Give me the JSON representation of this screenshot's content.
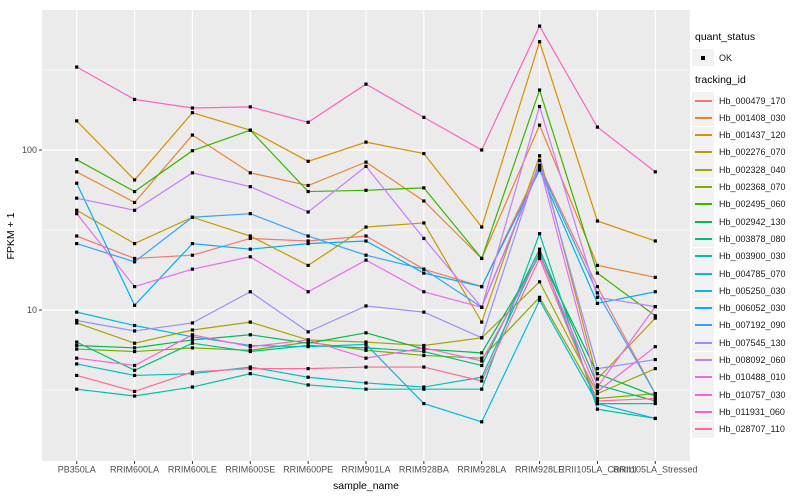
{
  "chart_data": {
    "type": "line",
    "title": "",
    "xlabel": "sample_name",
    "ylabel": "FPKM + 1",
    "y_scale": "log10",
    "ylim": [
      1.1,
      750
    ],
    "grid": true,
    "legend_position": "right",
    "panel_bg": "#EBEBEB",
    "grid_color": "#FFFFFF",
    "point_color": "#000000",
    "axis_text_color": "#4D4D4D",
    "y_ticks": [
      {
        "value": 100,
        "label": "100"
      },
      {
        "value": 10,
        "label": "10"
      }
    ],
    "y_minor_ticks": [
      3.162,
      31.62,
      316.2
    ],
    "categories": [
      "PB350LA",
      "RRIM600LA",
      "RRIM600LE",
      "RRIM600SE",
      "RRIM600PE",
      "RRIM901LA",
      "RRIM928BA",
      "RRIM928LA",
      "RRIM928LE",
      "RRII105LA_Control",
      "RRII105LA_Stressed"
    ],
    "legend": {
      "quant_status": {
        "title": "quant_status",
        "items": [
          "OK"
        ]
      },
      "tracking_id": {
        "title": "tracking_id"
      }
    },
    "series": [
      {
        "name": "Hb_000479_170",
        "color": "#F8766D",
        "values": [
          29,
          21,
          22,
          28,
          27,
          29,
          18,
          14,
          80,
          14,
          3.0
        ]
      },
      {
        "name": "Hb_001408_030",
        "color": "#EA8331",
        "values": [
          73,
          47,
          124,
          72,
          60,
          84,
          48,
          21,
          143,
          19,
          16
        ]
      },
      {
        "name": "Hb_001437_120",
        "color": "#D89000",
        "values": [
          152,
          65,
          171,
          133,
          85,
          112,
          95,
          33,
          475,
          36,
          27
        ]
      },
      {
        "name": "Hb_002276_070",
        "color": "#C09B00",
        "values": [
          42,
          26,
          38,
          29,
          19,
          33,
          35,
          8.4,
          92,
          3.7,
          8.9
        ]
      },
      {
        "name": "Hb_002328_040",
        "color": "#A3A500",
        "values": [
          8.3,
          6.2,
          7.5,
          8.4,
          6.5,
          6.3,
          6.0,
          6.7,
          15,
          3.0,
          4.3
        ]
      },
      {
        "name": "Hb_002368_070",
        "color": "#7CAE00",
        "values": [
          5.7,
          5.5,
          5.8,
          5.6,
          6.3,
          5.6,
          5.2,
          5.0,
          12,
          2.8,
          3.0
        ]
      },
      {
        "name": "Hb_002495_060",
        "color": "#39B600",
        "values": [
          87,
          55,
          99,
          133,
          55,
          56,
          58,
          21,
          237,
          17,
          9.2
        ]
      },
      {
        "name": "Hb_002942_130",
        "color": "#00BB4E",
        "values": [
          6.0,
          5.8,
          6.5,
          7.0,
          6.2,
          7.2,
          5.7,
          5.4,
          22,
          4.0,
          2.9
        ]
      },
      {
        "name": "Hb_003878_080",
        "color": "#00BF7D",
        "values": [
          6.3,
          4.2,
          6.2,
          5.5,
          6.0,
          5.8,
          5.5,
          4.5,
          24,
          3.4,
          2.7
        ]
      },
      {
        "name": "Hb_003900_030",
        "color": "#00C1A3",
        "values": [
          3.2,
          2.9,
          3.3,
          4.0,
          3.4,
          3.2,
          3.2,
          3.2,
          30,
          2.4,
          2.1
        ]
      },
      {
        "name": "Hb_004785_070",
        "color": "#00BFC4",
        "values": [
          4.6,
          3.9,
          4.0,
          4.4,
          3.8,
          3.5,
          3.3,
          3.8,
          23,
          2.6,
          2.6
        ]
      },
      {
        "name": "Hb_005250_030",
        "color": "#00BAE0",
        "values": [
          9.7,
          8.0,
          6.8,
          6.0,
          5.9,
          6.1,
          2.6,
          2.0,
          11.5,
          2.6,
          2.1
        ]
      },
      {
        "name": "Hb_006052_030",
        "color": "#00B0F6",
        "values": [
          62,
          10.7,
          26,
          24,
          26,
          27,
          17,
          14,
          75,
          11,
          13
        ]
      },
      {
        "name": "Hb_007192_090",
        "color": "#35A2FF",
        "values": [
          26,
          20,
          38,
          40,
          29,
          22,
          18,
          10.4,
          78,
          12.8,
          3.0
        ]
      },
      {
        "name": "Hb_007545_130",
        "color": "#9590FF",
        "values": [
          8.6,
          7.4,
          8.3,
          13,
          7.3,
          10.6,
          9.7,
          6.7,
          86,
          4.3,
          4.9
        ]
      },
      {
        "name": "Hb_008092_060",
        "color": "#C77CFF",
        "values": [
          50,
          42,
          72,
          59,
          41,
          79,
          28,
          10.4,
          187,
          12,
          10.5
        ]
      },
      {
        "name": "Hb_010488_010",
        "color": "#E76BF3",
        "values": [
          40,
          14,
          18,
          21.5,
          13,
          20.5,
          13,
          10.4,
          80,
          3.3,
          10.5
        ]
      },
      {
        "name": "Hb_010757_030",
        "color": "#FA62DB",
        "values": [
          5.0,
          4.5,
          7.0,
          5.9,
          6.5,
          5.0,
          5.8,
          4.8,
          22,
          3.1,
          5.9
        ]
      },
      {
        "name": "Hb_011931_060",
        "color": "#FF62BC",
        "values": [
          330,
          207,
          183,
          186,
          149,
          258,
          160,
          100,
          595,
          139,
          73
        ]
      },
      {
        "name": "Hb_028707_110",
        "color": "#FF6A98",
        "values": [
          3.9,
          3.1,
          4.1,
          4.3,
          4.3,
          4.4,
          4.4,
          3.6,
          21,
          2.7,
          2.8
        ]
      }
    ]
  }
}
